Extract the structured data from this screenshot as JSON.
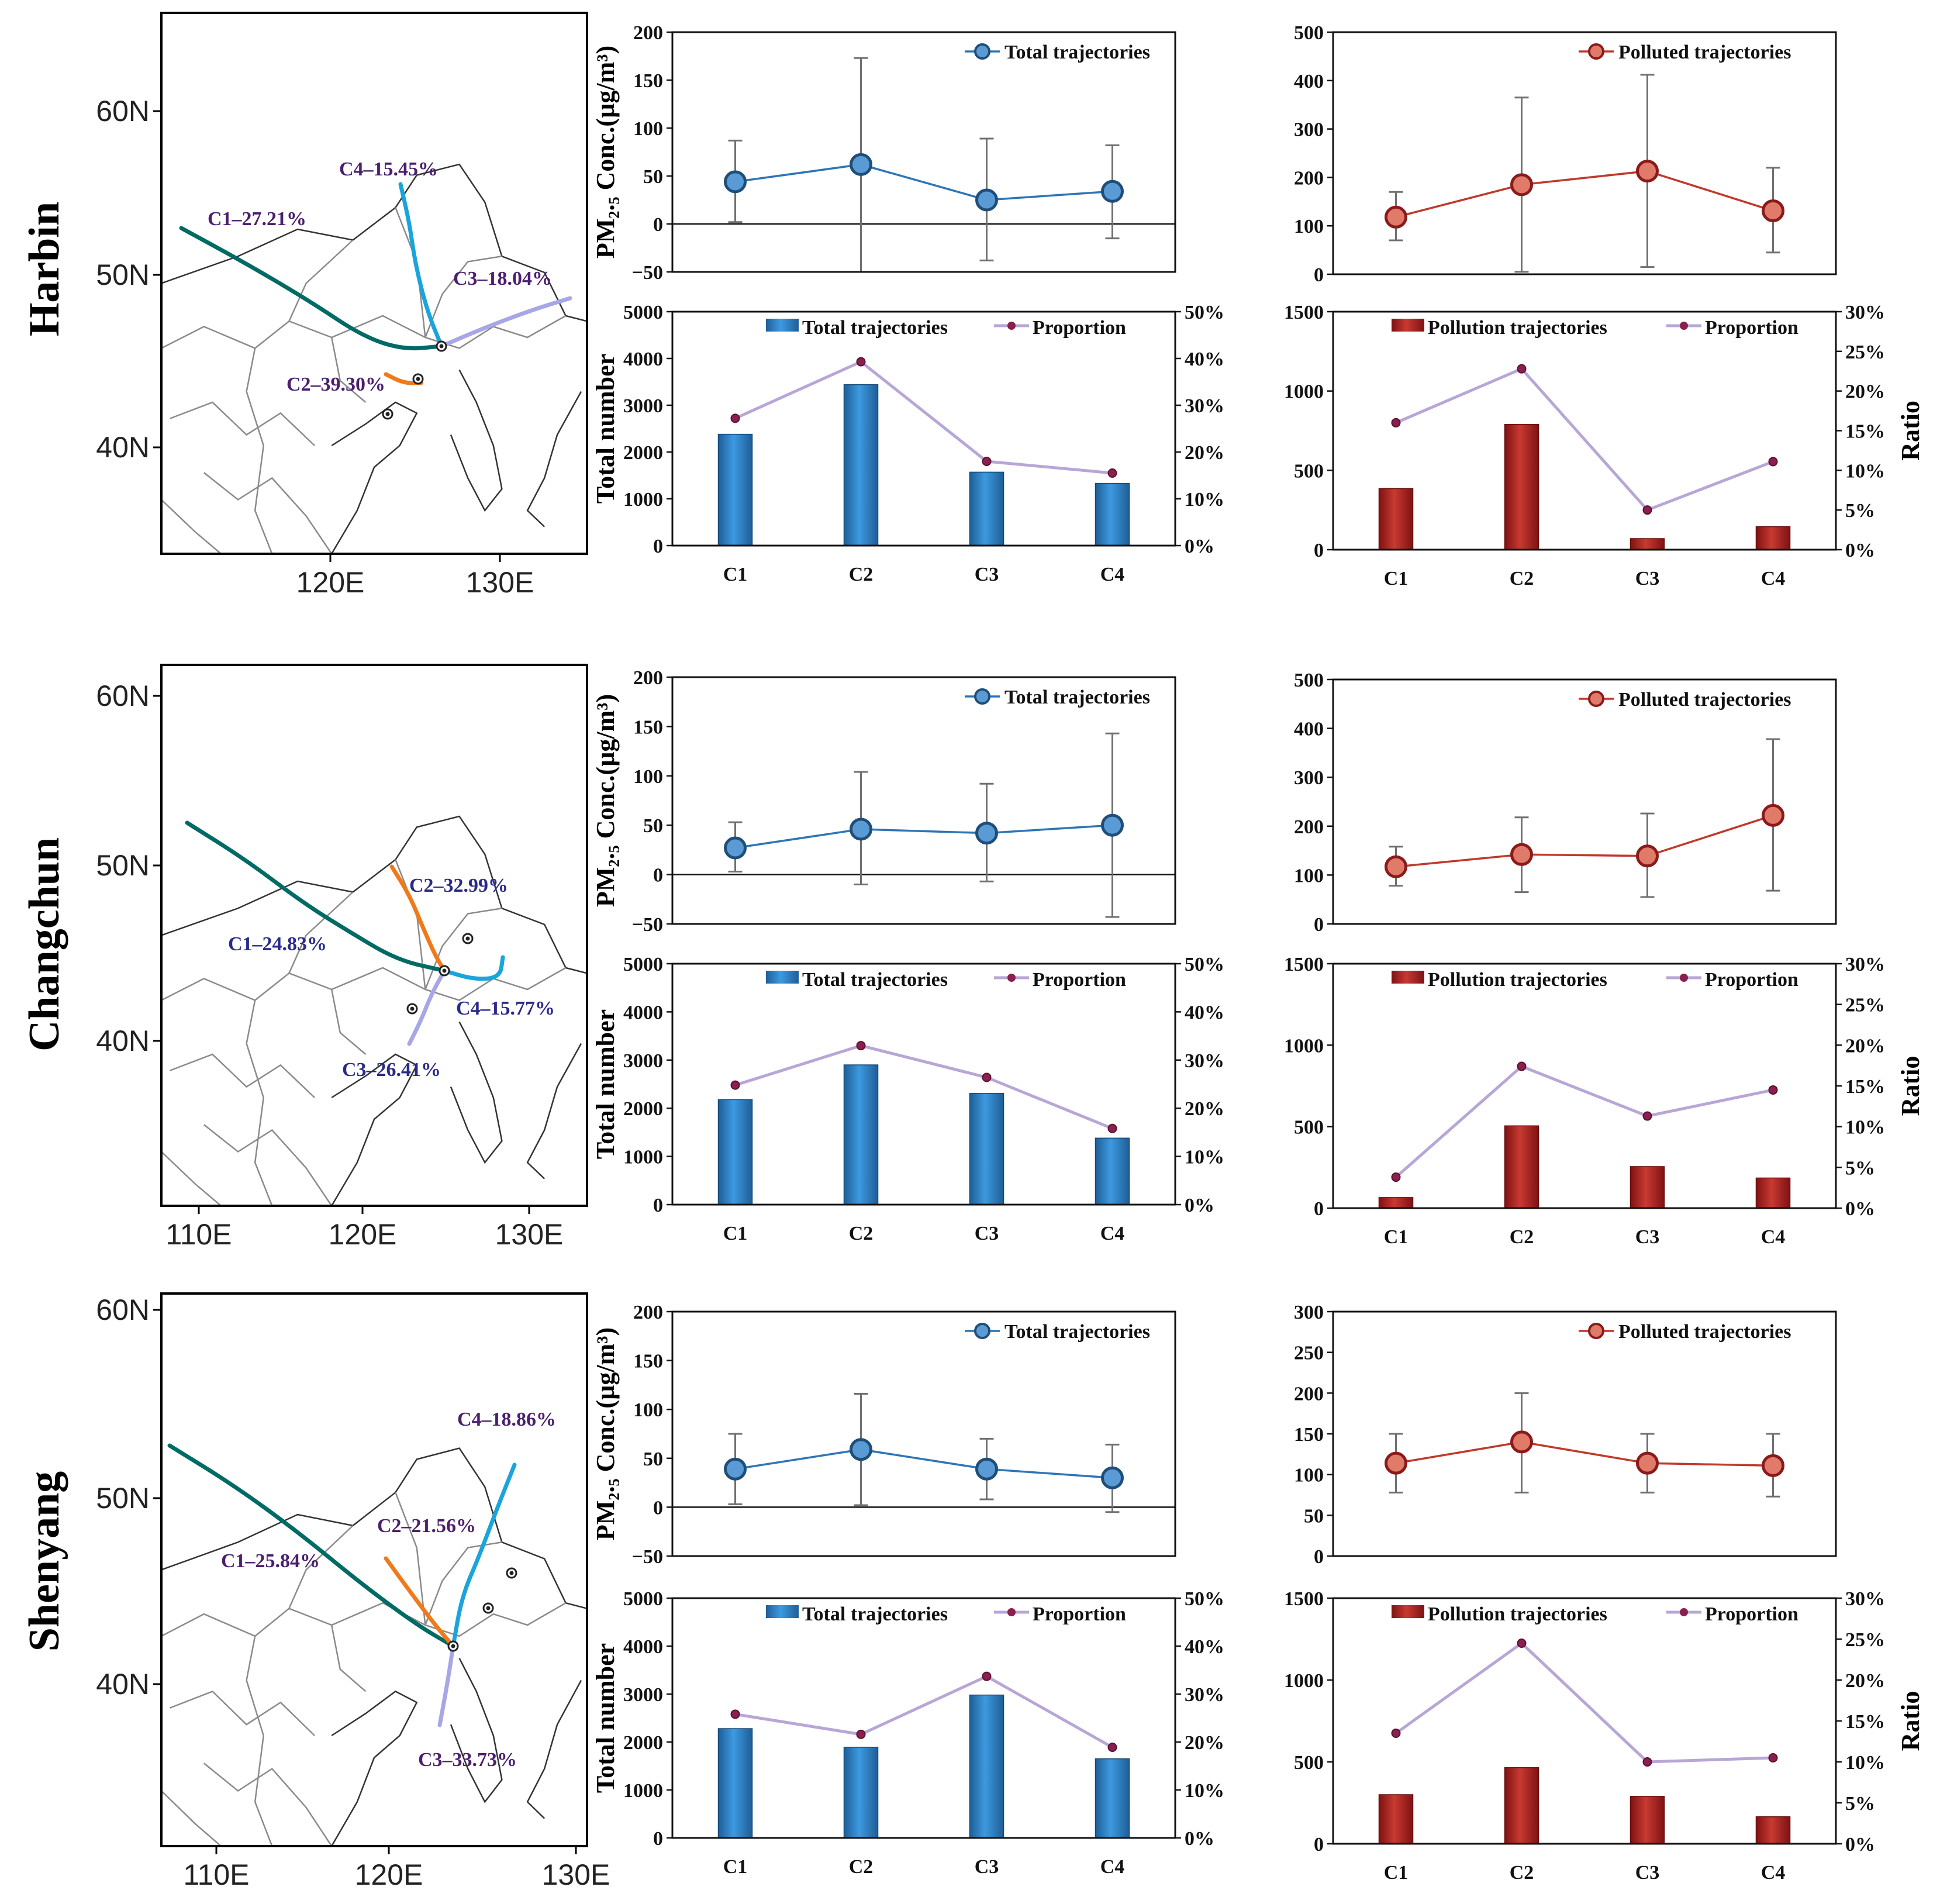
{
  "figure": {
    "rows": [
      {
        "city": "Harbin",
        "map": {
          "lat_ticks": [
            "60N",
            "50N",
            "40N"
          ],
          "lon_ticks": [
            "120E",
            "130E"
          ],
          "trajectories": [
            {
              "id": "C1",
              "label": "C1–27.21%",
              "color": "#006A64",
              "label_color": "#4B1F6E"
            },
            {
              "id": "C2",
              "label": "C2–39.30%",
              "color": "#F07A1B",
              "label_color": "#4B1F6E"
            },
            {
              "id": "C3",
              "label": "C3–18.04%",
              "color": "#A7A6E6",
              "label_color": "#4B1F6E"
            },
            {
              "id": "C4",
              "label": "C4–15.45%",
              "color": "#1BA4DC",
              "label_color": "#4B1F6E"
            }
          ]
        },
        "conc_total": {
          "type": "line",
          "legend": "Total trajectories",
          "ylabel": "PM₂.₅ Conc.(µg/m³)",
          "categories": [
            "C1",
            "C2",
            "C3",
            "C4"
          ],
          "ylim": [
            -50,
            200
          ],
          "yticks": [
            "200",
            "150",
            "100",
            "50",
            "0",
            "−50"
          ],
          "values": [
            44,
            62,
            25,
            34
          ],
          "err_low": [
            2,
            -50,
            -38,
            -15
          ],
          "err_high": [
            87,
            173,
            89,
            82
          ],
          "color": "#2E75B6"
        },
        "conc_polluted": {
          "type": "line",
          "legend": "Polluted trajectories",
          "ylabel": "",
          "categories": [
            "C1",
            "C2",
            "C3",
            "C4"
          ],
          "ylim": [
            0,
            500
          ],
          "yticks": [
            "500",
            "400",
            "300",
            "200",
            "100",
            "0"
          ],
          "values": [
            118,
            185,
            213,
            131
          ],
          "err_low": [
            70,
            5,
            15,
            45
          ],
          "err_high": [
            170,
            365,
            412,
            220
          ],
          "color": "#C0392B"
        },
        "count_total": {
          "type": "bar",
          "legend_bar": "Total trajectories",
          "legend_line": "Proportion",
          "ylabel": "Total number",
          "categories": [
            "C1",
            "C2",
            "C3",
            "C4"
          ],
          "ylim": [
            0,
            5000
          ],
          "yticks": [
            "5000",
            "4000",
            "3000",
            "2000",
            "1000",
            "0"
          ],
          "ylim_right": [
            0,
            50
          ],
          "yticks_right": [
            "50%",
            "40%",
            "30%",
            "20%",
            "10%",
            "0%"
          ],
          "values": [
            2380,
            3440,
            1570,
            1330
          ],
          "proportion": [
            27.2,
            39.3,
            18.0,
            15.5
          ],
          "color": "#2E86C8"
        },
        "count_polluted": {
          "type": "bar",
          "legend_bar": "Pollution trajectories",
          "legend_line": "Proportion",
          "ylabel_right": "Ratio",
          "categories": [
            "C1",
            "C2",
            "C3",
            "C4"
          ],
          "ylim": [
            0,
            1500
          ],
          "yticks": [
            "1500",
            "1000",
            "500",
            "0"
          ],
          "ylim_right": [
            0,
            30
          ],
          "yticks_right": [
            "30%",
            "25%",
            "20%",
            "15%",
            "10%",
            "5%",
            "0%"
          ],
          "values": [
            385,
            790,
            70,
            145
          ],
          "proportion": [
            16.0,
            22.8,
            5.0,
            11.1
          ],
          "color": "#B22222"
        }
      },
      {
        "city": "Changchun",
        "map": {
          "lat_ticks": [
            "60N",
            "50N",
            "40N"
          ],
          "lon_ticks": [
            "110E",
            "120E",
            "130E"
          ],
          "trajectories": [
            {
              "id": "C1",
              "label": "C1–24.83%",
              "color": "#006A64",
              "label_color": "#2A2A8A"
            },
            {
              "id": "C2",
              "label": "C2–32.99%",
              "color": "#F07A1B",
              "label_color": "#2A2A8A"
            },
            {
              "id": "C3",
              "label": "C3–26.41%",
              "color": "#A7A6E6",
              "label_color": "#2A2A8A"
            },
            {
              "id": "C4",
              "label": "C4–15.77%",
              "color": "#1BA4DC",
              "label_color": "#2A2A8A"
            }
          ]
        },
        "conc_total": {
          "type": "line",
          "legend": "Total trajectories",
          "ylabel": "PM₂.₅ Conc.(µg/m³)",
          "categories": [
            "C1",
            "C2",
            "C3",
            "C4"
          ],
          "ylim": [
            -50,
            200
          ],
          "yticks": [
            "200",
            "150",
            "100",
            "50",
            "0",
            "−50"
          ],
          "values": [
            27,
            46,
            42,
            50
          ],
          "err_low": [
            3,
            -10,
            -7,
            -43
          ],
          "err_high": [
            53,
            104,
            92,
            143
          ],
          "color": "#2E75B6"
        },
        "conc_polluted": {
          "type": "line",
          "legend": "Polluted trajectories",
          "ylabel": "",
          "categories": [
            "C1",
            "C2",
            "C3",
            "C4"
          ],
          "ylim": [
            0,
            500
          ],
          "yticks": [
            "500",
            "400",
            "300",
            "200",
            "100",
            "0"
          ],
          "values": [
            117,
            142,
            139,
            222
          ],
          "err_low": [
            78,
            65,
            55,
            68
          ],
          "err_high": [
            158,
            218,
            226,
            378
          ],
          "color": "#C0392B"
        },
        "count_total": {
          "type": "bar",
          "legend_bar": "Total trajectories",
          "legend_line": "Proportion",
          "ylabel": "Total number",
          "categories": [
            "C1",
            "C2",
            "C3",
            "C4"
          ],
          "ylim": [
            0,
            5000
          ],
          "yticks": [
            "5000",
            "4000",
            "3000",
            "2000",
            "1000",
            "0"
          ],
          "ylim_right": [
            0,
            50
          ],
          "yticks_right": [
            "50%",
            "40%",
            "30%",
            "20%",
            "10%",
            "0%"
          ],
          "values": [
            2180,
            2900,
            2310,
            1380
          ],
          "proportion": [
            24.8,
            33.0,
            26.4,
            15.8
          ],
          "color": "#2E86C8"
        },
        "count_polluted": {
          "type": "bar",
          "legend_bar": "Pollution trajectories",
          "legend_line": "Proportion",
          "ylabel_right": "Ratio",
          "categories": [
            "C1",
            "C2",
            "C3",
            "C4"
          ],
          "ylim": [
            0,
            1500
          ],
          "yticks": [
            "1500",
            "1000",
            "500",
            "0"
          ],
          "ylim_right": [
            0,
            30
          ],
          "yticks_right": [
            "30%",
            "25%",
            "20%",
            "15%",
            "10%",
            "5%",
            "0%"
          ],
          "values": [
            65,
            505,
            255,
            185
          ],
          "proportion": [
            3.8,
            17.4,
            11.3,
            14.5
          ],
          "color": "#B22222"
        }
      },
      {
        "city": "Shenyang",
        "map": {
          "lat_ticks": [
            "60N",
            "50N",
            "40N"
          ],
          "lon_ticks": [
            "110E",
            "120E",
            "130E"
          ],
          "trajectories": [
            {
              "id": "C1",
              "label": "C1–25.84%",
              "color": "#006A64",
              "label_color": "#4B1F6E"
            },
            {
              "id": "C2",
              "label": "C2–21.56%",
              "color": "#F07A1B",
              "label_color": "#4B1F6E"
            },
            {
              "id": "C3",
              "label": "C3–33.73%",
              "color": "#A7A6E6",
              "label_color": "#4B1F6E"
            },
            {
              "id": "C4",
              "label": "C4–18.86%",
              "color": "#1BA4DC",
              "label_color": "#4B1F6E"
            }
          ]
        },
        "conc_total": {
          "type": "line",
          "legend": "Total trajectories",
          "ylabel": "PM₂.₅ Conc.(µg/m³)",
          "categories": [
            "C1",
            "C2",
            "C3",
            "C4"
          ],
          "ylim": [
            -50,
            200
          ],
          "yticks": [
            "200",
            "150",
            "100",
            "50",
            "0",
            "−50"
          ],
          "values": [
            39,
            59,
            39,
            30
          ],
          "err_low": [
            3,
            2,
            8,
            -5
          ],
          "err_high": [
            75,
            116,
            70,
            64
          ],
          "color": "#2E75B6"
        },
        "conc_polluted": {
          "type": "line",
          "legend": "Polluted trajectories",
          "ylabel": "",
          "categories": [
            "C1",
            "C2",
            "C3",
            "C4"
          ],
          "ylim": [
            0,
            300
          ],
          "yticks": [
            "300",
            "250",
            "200",
            "150",
            "100",
            "50",
            "0"
          ],
          "values": [
            114,
            140,
            114,
            111
          ],
          "err_low": [
            78,
            78,
            78,
            73
          ],
          "err_high": [
            150,
            200,
            150,
            150
          ],
          "color": "#C0392B"
        },
        "count_total": {
          "type": "bar",
          "legend_bar": "Total trajectories",
          "legend_line": "Proportion",
          "ylabel": "Total number",
          "categories": [
            "C1",
            "C2",
            "C3",
            "C4"
          ],
          "ylim": [
            0,
            5000
          ],
          "yticks": [
            "5000",
            "4000",
            "3000",
            "2000",
            "1000",
            "0"
          ],
          "ylim_right": [
            0,
            50
          ],
          "yticks_right": [
            "50%",
            "40%",
            "30%",
            "20%",
            "10%",
            "0%"
          ],
          "values": [
            2280,
            1890,
            2980,
            1650
          ],
          "proportion": [
            25.8,
            21.6,
            33.7,
            18.9
          ],
          "color": "#2E86C8"
        },
        "count_polluted": {
          "type": "bar",
          "legend_bar": "Pollution trajectories",
          "legend_line": "Proportion",
          "ylabel_right": "Ratio",
          "categories": [
            "C1",
            "C2",
            "C3",
            "C4"
          ],
          "ylim": [
            0,
            1500
          ],
          "yticks": [
            "1500",
            "1000",
            "500",
            "0"
          ],
          "ylim_right": [
            0,
            30
          ],
          "yticks_right": [
            "30%",
            "25%",
            "20%",
            "15%",
            "10%",
            "5%",
            "0%"
          ],
          "values": [
            300,
            465,
            290,
            165
          ],
          "proportion": [
            13.5,
            24.5,
            10.0,
            10.5
          ],
          "color": "#B22222"
        }
      }
    ]
  },
  "chart_data": [
    {
      "type": "line",
      "title": "Harbin – Total trajectories",
      "ylabel": "PM2.5 Conc.(µg/m³)",
      "categories": [
        "C1",
        "C2",
        "C3",
        "C4"
      ],
      "values": [
        44,
        62,
        25,
        34
      ],
      "ylim": [
        -50,
        200
      ]
    },
    {
      "type": "line",
      "title": "Harbin – Polluted trajectories",
      "categories": [
        "C1",
        "C2",
        "C3",
        "C4"
      ],
      "values": [
        118,
        185,
        213,
        131
      ],
      "ylim": [
        0,
        500
      ]
    },
    {
      "type": "bar",
      "title": "Harbin – Total trajectories count",
      "ylabel": "Total number",
      "categories": [
        "C1",
        "C2",
        "C3",
        "C4"
      ],
      "series": [
        {
          "name": "Total trajectories",
          "values": [
            2380,
            3440,
            1570,
            1330
          ]
        },
        {
          "name": "Proportion (%)",
          "values": [
            27.2,
            39.3,
            18.0,
            15.5
          ]
        }
      ]
    },
    {
      "type": "bar",
      "title": "Harbin – Pollution trajectories count",
      "ylabel": "Ratio",
      "categories": [
        "C1",
        "C2",
        "C3",
        "C4"
      ],
      "series": [
        {
          "name": "Pollution trajectories",
          "values": [
            385,
            790,
            70,
            145
          ]
        },
        {
          "name": "Proportion (%)",
          "values": [
            16.0,
            22.8,
            5.0,
            11.1
          ]
        }
      ]
    },
    {
      "type": "line",
      "title": "Changchun – Total trajectories",
      "categories": [
        "C1",
        "C2",
        "C3",
        "C4"
      ],
      "values": [
        27,
        46,
        42,
        50
      ],
      "ylim": [
        -50,
        200
      ]
    },
    {
      "type": "line",
      "title": "Changchun – Polluted trajectories",
      "categories": [
        "C1",
        "C2",
        "C3",
        "C4"
      ],
      "values": [
        117,
        142,
        139,
        222
      ],
      "ylim": [
        0,
        500
      ]
    },
    {
      "type": "bar",
      "title": "Changchun – Total trajectories count",
      "categories": [
        "C1",
        "C2",
        "C3",
        "C4"
      ],
      "series": [
        {
          "name": "Total trajectories",
          "values": [
            2180,
            2900,
            2310,
            1380
          ]
        },
        {
          "name": "Proportion (%)",
          "values": [
            24.8,
            33.0,
            26.4,
            15.8
          ]
        }
      ]
    },
    {
      "type": "bar",
      "title": "Changchun – Pollution trajectories count",
      "categories": [
        "C1",
        "C2",
        "C3",
        "C4"
      ],
      "series": [
        {
          "name": "Pollution trajectories",
          "values": [
            65,
            505,
            255,
            185
          ]
        },
        {
          "name": "Proportion (%)",
          "values": [
            3.8,
            17.4,
            11.3,
            14.5
          ]
        }
      ]
    },
    {
      "type": "line",
      "title": "Shenyang – Total trajectories",
      "categories": [
        "C1",
        "C2",
        "C3",
        "C4"
      ],
      "values": [
        39,
        59,
        39,
        30
      ],
      "ylim": [
        -50,
        200
      ]
    },
    {
      "type": "line",
      "title": "Shenyang – Polluted trajectories",
      "categories": [
        "C1",
        "C2",
        "C3",
        "C4"
      ],
      "values": [
        114,
        140,
        114,
        111
      ],
      "ylim": [
        0,
        300
      ]
    },
    {
      "type": "bar",
      "title": "Shenyang – Total trajectories count",
      "categories": [
        "C1",
        "C2",
        "C3",
        "C4"
      ],
      "series": [
        {
          "name": "Total trajectories",
          "values": [
            2280,
            1890,
            2980,
            1650
          ]
        },
        {
          "name": "Proportion (%)",
          "values": [
            25.8,
            21.6,
            33.7,
            18.9
          ]
        }
      ]
    },
    {
      "type": "bar",
      "title": "Shenyang – Pollution trajectories count",
      "categories": [
        "C1",
        "C2",
        "C3",
        "C4"
      ],
      "series": [
        {
          "name": "Pollution trajectories",
          "values": [
            300,
            465,
            290,
            165
          ]
        },
        {
          "name": "Proportion (%)",
          "values": [
            13.5,
            24.5,
            10.0,
            10.5
          ]
        }
      ]
    }
  ]
}
